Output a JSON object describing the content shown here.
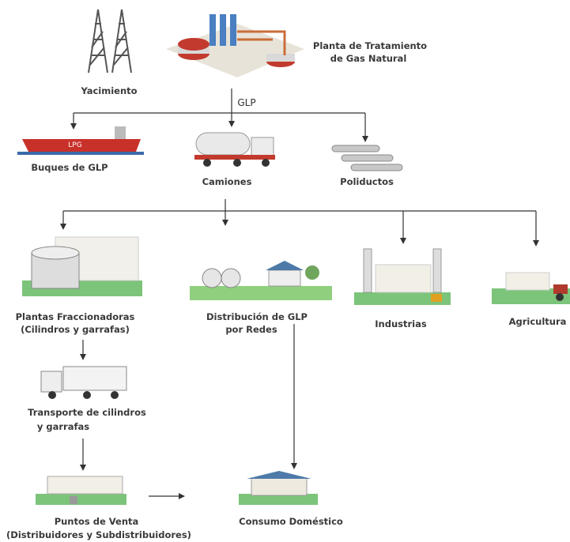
{
  "nodes": [
    {
      "label": [
        "Yacimiento"
      ]
    },
    {
      "label": [
        "Planta de Tratamiento",
        "de Gas Natural"
      ]
    },
    {
      "label": [
        "Buques de GLP"
      ],
      "marking": "LPG"
    },
    {
      "label": [
        "Camiones"
      ]
    },
    {
      "label": [
        "Poliductos"
      ]
    },
    {
      "label": [
        "Plantas Fraccionadoras",
        "(Cilindros y garrafas)"
      ]
    },
    {
      "label": [
        "Distribución de GLP",
        "por Redes"
      ]
    },
    {
      "label": [
        "Industrias"
      ]
    },
    {
      "label": [
        "Agricultura"
      ]
    },
    {
      "label": [
        "Transporte de cilindros",
        "y garrafas"
      ]
    },
    {
      "label": [
        "Puntos de Venta",
        "(Distribuidores y Subdistribuidores)"
      ]
    },
    {
      "label": [
        "Consumo Doméstico"
      ]
    }
  ],
  "arrow_label": "GLP"
}
